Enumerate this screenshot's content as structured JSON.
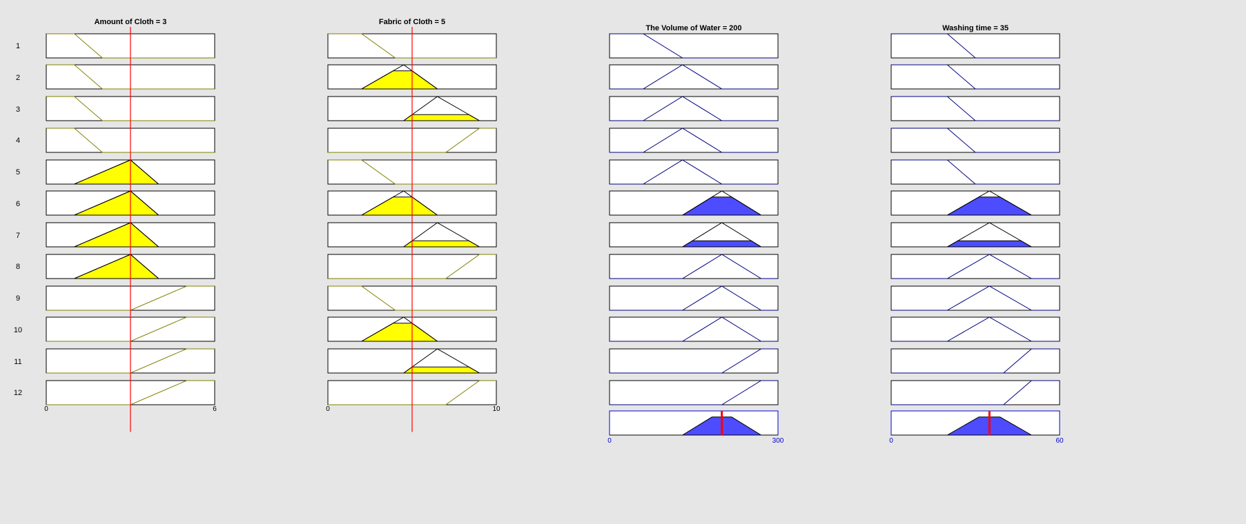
{
  "columns": [
    {
      "title": "Amount of Cloth = 3",
      "kind": "input",
      "range": [
        0,
        6
      ],
      "ticks": [
        "0",
        "6"
      ],
      "crisp_value": 3,
      "mfs": [
        [
          [
            0,
            1
          ],
          [
            1,
            1
          ],
          [
            2,
            0
          ],
          [
            6,
            0
          ]
        ],
        [
          [
            0,
            1
          ],
          [
            1,
            1
          ],
          [
            2,
            0
          ],
          [
            6,
            0
          ]
        ],
        [
          [
            0,
            1
          ],
          [
            1,
            1
          ],
          [
            2,
            0
          ],
          [
            6,
            0
          ]
        ],
        [
          [
            0,
            1
          ],
          [
            1,
            1
          ],
          [
            2,
            0
          ],
          [
            6,
            0
          ]
        ],
        [
          [
            0,
            0
          ],
          [
            1,
            0
          ],
          [
            3,
            1
          ],
          [
            4,
            0
          ],
          [
            6,
            0
          ]
        ],
        [
          [
            0,
            0
          ],
          [
            1,
            0
          ],
          [
            3,
            1
          ],
          [
            4,
            0
          ],
          [
            6,
            0
          ]
        ],
        [
          [
            0,
            0
          ],
          [
            1,
            0
          ],
          [
            3,
            1
          ],
          [
            4,
            0
          ],
          [
            6,
            0
          ]
        ],
        [
          [
            0,
            0
          ],
          [
            1,
            0
          ],
          [
            3,
            1
          ],
          [
            4,
            0
          ],
          [
            6,
            0
          ]
        ],
        [
          [
            0,
            0
          ],
          [
            3,
            0
          ],
          [
            5,
            1
          ],
          [
            6,
            1
          ]
        ],
        [
          [
            0,
            0
          ],
          [
            3,
            0
          ],
          [
            5,
            1
          ],
          [
            6,
            1
          ]
        ],
        [
          [
            0,
            0
          ],
          [
            3,
            0
          ],
          [
            5,
            1
          ],
          [
            6,
            1
          ]
        ],
        [
          [
            0,
            0
          ],
          [
            3,
            0
          ],
          [
            5,
            1
          ],
          [
            6,
            1
          ]
        ]
      ],
      "membership": [
        0,
        0,
        0,
        0,
        1,
        1,
        1,
        1,
        0,
        0,
        0,
        0
      ]
    },
    {
      "title": "Fabric of Cloth = 5",
      "kind": "input",
      "range": [
        0,
        10
      ],
      "ticks": [
        "0",
        "10"
      ],
      "crisp_value": 5,
      "mfs": [
        [
          [
            0,
            1
          ],
          [
            2,
            1
          ],
          [
            4,
            0
          ],
          [
            10,
            0
          ]
        ],
        [
          [
            0,
            0
          ],
          [
            2,
            0
          ],
          [
            4.5,
            1
          ],
          [
            6.5,
            0
          ],
          [
            10,
            0
          ]
        ],
        [
          [
            0,
            0
          ],
          [
            4.5,
            0
          ],
          [
            6.5,
            1
          ],
          [
            9,
            0
          ],
          [
            10,
            0
          ]
        ],
        [
          [
            0,
            0
          ],
          [
            7,
            0
          ],
          [
            9,
            1
          ],
          [
            10,
            1
          ]
        ],
        [
          [
            0,
            1
          ],
          [
            2,
            1
          ],
          [
            4,
            0
          ],
          [
            10,
            0
          ]
        ],
        [
          [
            0,
            0
          ],
          [
            2,
            0
          ],
          [
            4.5,
            1
          ],
          [
            6.5,
            0
          ],
          [
            10,
            0
          ]
        ],
        [
          [
            0,
            0
          ],
          [
            4.5,
            0
          ],
          [
            6.5,
            1
          ],
          [
            9,
            0
          ],
          [
            10,
            0
          ]
        ],
        [
          [
            0,
            0
          ],
          [
            7,
            0
          ],
          [
            9,
            1
          ],
          [
            10,
            1
          ]
        ],
        [
          [
            0,
            1
          ],
          [
            2,
            1
          ],
          [
            4,
            0
          ],
          [
            10,
            0
          ]
        ],
        [
          [
            0,
            0
          ],
          [
            2,
            0
          ],
          [
            4.5,
            1
          ],
          [
            6.5,
            0
          ],
          [
            10,
            0
          ]
        ],
        [
          [
            0,
            0
          ],
          [
            4.5,
            0
          ],
          [
            6.5,
            1
          ],
          [
            9,
            0
          ],
          [
            10,
            0
          ]
        ],
        [
          [
            0,
            0
          ],
          [
            7,
            0
          ],
          [
            9,
            1
          ],
          [
            10,
            1
          ]
        ]
      ],
      "membership": [
        0,
        0.75,
        0.25,
        0,
        0,
        0.75,
        0.25,
        0,
        0,
        0.75,
        0.25,
        0
      ]
    },
    {
      "title": "The Volume of Water = 200",
      "kind": "output",
      "range": [
        0,
        300
      ],
      "ticks": [
        "0",
        "300"
      ],
      "crisp_value": 200,
      "mfs": [
        [
          [
            0,
            1
          ],
          [
            60,
            1
          ],
          [
            130,
            0
          ],
          [
            300,
            0
          ]
        ],
        [
          [
            0,
            0
          ],
          [
            60,
            0
          ],
          [
            130,
            1
          ],
          [
            200,
            0
          ],
          [
            300,
            0
          ]
        ],
        [
          [
            0,
            0
          ],
          [
            60,
            0
          ],
          [
            130,
            1
          ],
          [
            200,
            0
          ],
          [
            300,
            0
          ]
        ],
        [
          [
            0,
            0
          ],
          [
            60,
            0
          ],
          [
            130,
            1
          ],
          [
            200,
            0
          ],
          [
            300,
            0
          ]
        ],
        [
          [
            0,
            0
          ],
          [
            60,
            0
          ],
          [
            130,
            1
          ],
          [
            200,
            0
          ],
          [
            300,
            0
          ]
        ],
        [
          [
            0,
            0
          ],
          [
            130,
            0
          ],
          [
            200,
            1
          ],
          [
            270,
            0
          ],
          [
            300,
            0
          ]
        ],
        [
          [
            0,
            0
          ],
          [
            130,
            0
          ],
          [
            200,
            1
          ],
          [
            270,
            0
          ],
          [
            300,
            0
          ]
        ],
        [
          [
            0,
            0
          ],
          [
            130,
            0
          ],
          [
            200,
            1
          ],
          [
            270,
            0
          ],
          [
            300,
            0
          ]
        ],
        [
          [
            0,
            0
          ],
          [
            130,
            0
          ],
          [
            200,
            1
          ],
          [
            270,
            0
          ],
          [
            300,
            0
          ]
        ],
        [
          [
            0,
            0
          ],
          [
            130,
            0
          ],
          [
            200,
            1
          ],
          [
            270,
            0
          ],
          [
            300,
            0
          ]
        ],
        [
          [
            0,
            0
          ],
          [
            200,
            0
          ],
          [
            270,
            1
          ],
          [
            300,
            1
          ]
        ],
        [
          [
            0,
            0
          ],
          [
            200,
            0
          ],
          [
            270,
            1
          ],
          [
            300,
            1
          ]
        ]
      ],
      "membership": [
        0,
        0,
        0,
        0,
        0,
        0.75,
        0.25,
        0,
        0,
        0,
        0,
        0
      ],
      "aggregate": [
        [
          0,
          0
        ],
        [
          130,
          0
        ],
        [
          182.5,
          0.75
        ],
        [
          217.5,
          0.75
        ],
        [
          270,
          0
        ],
        [
          300,
          0
        ]
      ]
    },
    {
      "title": "Washing time = 35",
      "kind": "output",
      "range": [
        0,
        60
      ],
      "ticks": [
        "0",
        "60"
      ],
      "crisp_value": 35,
      "mfs": [
        [
          [
            0,
            1
          ],
          [
            20,
            1
          ],
          [
            30,
            0
          ],
          [
            60,
            0
          ]
        ],
        [
          [
            0,
            1
          ],
          [
            20,
            1
          ],
          [
            30,
            0
          ],
          [
            60,
            0
          ]
        ],
        [
          [
            0,
            1
          ],
          [
            20,
            1
          ],
          [
            30,
            0
          ],
          [
            60,
            0
          ]
        ],
        [
          [
            0,
            1
          ],
          [
            20,
            1
          ],
          [
            30,
            0
          ],
          [
            60,
            0
          ]
        ],
        [
          [
            0,
            1
          ],
          [
            20,
            1
          ],
          [
            30,
            0
          ],
          [
            60,
            0
          ]
        ],
        [
          [
            0,
            0
          ],
          [
            20,
            0
          ],
          [
            35,
            1
          ],
          [
            50,
            0
          ],
          [
            60,
            0
          ]
        ],
        [
          [
            0,
            0
          ],
          [
            20,
            0
          ],
          [
            35,
            1
          ],
          [
            50,
            0
          ],
          [
            60,
            0
          ]
        ],
        [
          [
            0,
            0
          ],
          [
            20,
            0
          ],
          [
            35,
            1
          ],
          [
            50,
            0
          ],
          [
            60,
            0
          ]
        ],
        [
          [
            0,
            0
          ],
          [
            20,
            0
          ],
          [
            35,
            1
          ],
          [
            50,
            0
          ],
          [
            60,
            0
          ]
        ],
        [
          [
            0,
            0
          ],
          [
            20,
            0
          ],
          [
            35,
            1
          ],
          [
            50,
            0
          ],
          [
            60,
            0
          ]
        ],
        [
          [
            0,
            0
          ],
          [
            40,
            0
          ],
          [
            50,
            1
          ],
          [
            60,
            1
          ]
        ],
        [
          [
            0,
            0
          ],
          [
            40,
            0
          ],
          [
            50,
            1
          ],
          [
            60,
            1
          ]
        ]
      ],
      "membership": [
        0,
        0,
        0,
        0,
        0,
        0.75,
        0.25,
        0,
        0,
        0,
        0,
        0
      ],
      "aggregate": [
        [
          0,
          0
        ],
        [
          20,
          0
        ],
        [
          31.25,
          0.75
        ],
        [
          38.75,
          0.75
        ],
        [
          50,
          0
        ],
        [
          60,
          0
        ]
      ]
    }
  ],
  "rows": [
    "1",
    "2",
    "3",
    "4",
    "5",
    "6",
    "7",
    "8",
    "9",
    "10",
    "11",
    "12"
  ],
  "colors": {
    "background": "#e6e6e6",
    "input_line": "#808000",
    "input_fill": "#ffff00",
    "output_line": "#000080",
    "output_fill": "#4d4dff",
    "output_box": "#0000cc",
    "input_marker": "#ff0000",
    "output_marker": "#ff0000"
  }
}
